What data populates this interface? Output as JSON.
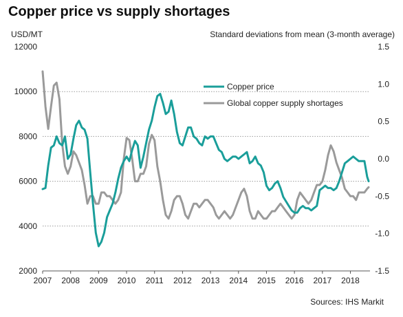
{
  "chart_data": {
    "type": "line",
    "title": "Copper price vs supply shortages",
    "left_axis_label": "USD/MT",
    "right_axis_label": "Standard  deviations  from mean  (3-month  average)",
    "source": "Sources:  IHS  Markit",
    "ylim_left": [
      2000,
      12000
    ],
    "left_ticks": [
      "12000",
      "10000",
      "8000",
      "6000",
      "4000",
      "2000"
    ],
    "ylim_right": [
      -1.5,
      1.5
    ],
    "right_ticks": [
      "1.5",
      "1.0",
      "0.5",
      "0.0",
      "-0.5",
      "-1.0",
      "-1.5"
    ],
    "x_range": [
      2007,
      2018.7
    ],
    "x_ticks": [
      "2007",
      "2008",
      "2009",
      "2010",
      "2011",
      "2012",
      "2013",
      "2014",
      "2015",
      "2016",
      "2017",
      "2018"
    ],
    "grid": "dotted horizontal",
    "legend_position": "upper-center",
    "series": [
      {
        "name": "Copper price",
        "axis": "left",
        "color": "#1a9e9a",
        "x": [
          2007.0,
          2007.1,
          2007.2,
          2007.3,
          2007.4,
          2007.5,
          2007.6,
          2007.7,
          2007.8,
          2007.9,
          2008.0,
          2008.1,
          2008.2,
          2008.3,
          2008.4,
          2008.5,
          2008.6,
          2008.7,
          2008.8,
          2008.9,
          2009.0,
          2009.1,
          2009.2,
          2009.3,
          2009.4,
          2009.5,
          2009.6,
          2009.7,
          2009.8,
          2009.9,
          2010.0,
          2010.1,
          2010.2,
          2010.3,
          2010.4,
          2010.5,
          2010.6,
          2010.7,
          2010.8,
          2010.9,
          2011.0,
          2011.1,
          2011.2,
          2011.3,
          2011.4,
          2011.5,
          2011.6,
          2011.7,
          2011.8,
          2011.9,
          2012.0,
          2012.1,
          2012.2,
          2012.3,
          2012.4,
          2012.5,
          2012.6,
          2012.7,
          2012.8,
          2012.9,
          2013.0,
          2013.1,
          2013.2,
          2013.3,
          2013.4,
          2013.5,
          2013.6,
          2013.7,
          2013.8,
          2013.9,
          2014.0,
          2014.1,
          2014.2,
          2014.3,
          2014.4,
          2014.5,
          2014.6,
          2014.7,
          2014.8,
          2014.9,
          2015.0,
          2015.1,
          2015.2,
          2015.3,
          2015.4,
          2015.5,
          2015.6,
          2015.7,
          2015.8,
          2015.9,
          2016.0,
          2016.1,
          2016.2,
          2016.3,
          2016.4,
          2016.5,
          2016.6,
          2016.7,
          2016.8,
          2016.9,
          2017.0,
          2017.1,
          2017.2,
          2017.3,
          2017.4,
          2017.5,
          2017.6,
          2017.7,
          2017.8,
          2017.9,
          2018.0,
          2018.1,
          2018.2,
          2018.3,
          2018.4,
          2018.5,
          2018.6,
          2018.65
        ],
        "values": [
          5650,
          5700,
          6700,
          7500,
          7600,
          8000,
          7700,
          7600,
          8000,
          7000,
          7200,
          7900,
          8500,
          8700,
          8400,
          8300,
          7900,
          6400,
          5000,
          3700,
          3100,
          3300,
          3700,
          4400,
          4700,
          5000,
          5500,
          6100,
          6600,
          6900,
          7100,
          6900,
          7400,
          7800,
          7600,
          6600,
          7100,
          7700,
          8300,
          8700,
          9300,
          9800,
          9900,
          9500,
          9000,
          9100,
          9600,
          9000,
          8200,
          7700,
          7600,
          8000,
          8400,
          8400,
          8000,
          7900,
          7700,
          7600,
          8000,
          7900,
          8000,
          8000,
          7700,
          7400,
          7300,
          7000,
          6900,
          7000,
          7100,
          7100,
          7000,
          7100,
          7200,
          7300,
          6800,
          6900,
          7100,
          6800,
          6700,
          6400,
          5800,
          5600,
          5700,
          5900,
          6000,
          5700,
          5300,
          5100,
          4900,
          4700,
          4600,
          4600,
          4800,
          4900,
          4800,
          4800,
          4700,
          4800,
          4900,
          5600,
          5700,
          5800,
          5700,
          5700,
          5600,
          5700,
          6000,
          6400,
          6800,
          6900,
          7000,
          7100,
          7000,
          6900,
          6900,
          6900,
          6200,
          6000
        ]
      },
      {
        "name": "Global copper supply shortages",
        "axis": "right",
        "color": "#9a9a9a",
        "x": [
          2007.0,
          2007.1,
          2007.2,
          2007.3,
          2007.4,
          2007.5,
          2007.6,
          2007.7,
          2007.8,
          2007.9,
          2008.0,
          2008.1,
          2008.2,
          2008.3,
          2008.4,
          2008.5,
          2008.6,
          2008.7,
          2008.8,
          2008.9,
          2009.0,
          2009.1,
          2009.2,
          2009.3,
          2009.4,
          2009.5,
          2009.6,
          2009.7,
          2009.8,
          2009.9,
          2010.0,
          2010.1,
          2010.2,
          2010.3,
          2010.4,
          2010.5,
          2010.6,
          2010.7,
          2010.8,
          2010.9,
          2011.0,
          2011.1,
          2011.2,
          2011.3,
          2011.4,
          2011.5,
          2011.6,
          2011.7,
          2011.8,
          2011.9,
          2012.0,
          2012.1,
          2012.2,
          2012.3,
          2012.4,
          2012.5,
          2012.6,
          2012.7,
          2012.8,
          2012.9,
          2013.0,
          2013.1,
          2013.2,
          2013.3,
          2013.4,
          2013.5,
          2013.6,
          2013.7,
          2013.8,
          2013.9,
          2014.0,
          2014.1,
          2014.2,
          2014.3,
          2014.4,
          2014.5,
          2014.6,
          2014.7,
          2014.8,
          2014.9,
          2015.0,
          2015.1,
          2015.2,
          2015.3,
          2015.4,
          2015.5,
          2015.6,
          2015.7,
          2015.8,
          2015.9,
          2016.0,
          2016.1,
          2016.2,
          2016.3,
          2016.4,
          2016.5,
          2016.6,
          2016.7,
          2016.8,
          2016.9,
          2017.0,
          2017.1,
          2017.2,
          2017.3,
          2017.4,
          2017.5,
          2017.6,
          2017.7,
          2017.8,
          2017.9,
          2018.0,
          2018.1,
          2018.2,
          2018.3,
          2018.4,
          2018.5,
          2018.6,
          2018.65
        ],
        "values": [
          1.17,
          0.7,
          0.4,
          0.7,
          0.98,
          1.02,
          0.8,
          0.2,
          -0.1,
          -0.2,
          -0.1,
          0.1,
          0.05,
          -0.05,
          -0.15,
          -0.35,
          -0.6,
          -0.5,
          -0.5,
          -0.6,
          -0.6,
          -0.45,
          -0.45,
          -0.5,
          -0.5,
          -0.55,
          -0.6,
          -0.55,
          -0.45,
          0.0,
          0.28,
          0.25,
          0.0,
          -0.3,
          -0.3,
          -0.2,
          -0.2,
          -0.1,
          0.2,
          0.32,
          0.25,
          -0.1,
          -0.3,
          -0.55,
          -0.75,
          -0.8,
          -0.7,
          -0.55,
          -0.5,
          -0.5,
          -0.6,
          -0.75,
          -0.8,
          -0.7,
          -0.6,
          -0.6,
          -0.65,
          -0.6,
          -0.55,
          -0.55,
          -0.6,
          -0.65,
          -0.75,
          -0.8,
          -0.75,
          -0.7,
          -0.75,
          -0.8,
          -0.75,
          -0.65,
          -0.55,
          -0.45,
          -0.4,
          -0.5,
          -0.7,
          -0.8,
          -0.8,
          -0.7,
          -0.75,
          -0.8,
          -0.8,
          -0.75,
          -0.7,
          -0.7,
          -0.65,
          -0.6,
          -0.65,
          -0.7,
          -0.75,
          -0.8,
          -0.75,
          -0.55,
          -0.45,
          -0.5,
          -0.55,
          -0.6,
          -0.55,
          -0.45,
          -0.35,
          -0.35,
          -0.3,
          -0.15,
          0.05,
          0.18,
          0.1,
          -0.05,
          -0.15,
          -0.25,
          -0.4,
          -0.45,
          -0.5,
          -0.5,
          -0.55,
          -0.45,
          -0.45,
          -0.45,
          -0.4,
          -0.38
        ]
      }
    ]
  }
}
